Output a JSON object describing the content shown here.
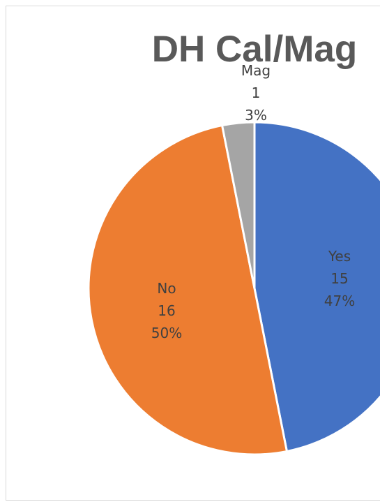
{
  "chart_data": {
    "type": "pie",
    "title": "DH Cal/Mag",
    "slices": [
      {
        "label": "Yes",
        "value": 15,
        "percent": "47%",
        "color": "#4472c4"
      },
      {
        "label": "No",
        "value": 16,
        "percent": "50%",
        "color": "#ed7d31"
      },
      {
        "label": "Mag",
        "value": 1,
        "percent": "3%",
        "color": "#a5a5a5"
      }
    ],
    "start_angle_deg": 0,
    "direction": "clockwise",
    "data_labels": "inside (Mag label outside above)",
    "legend": "none"
  }
}
